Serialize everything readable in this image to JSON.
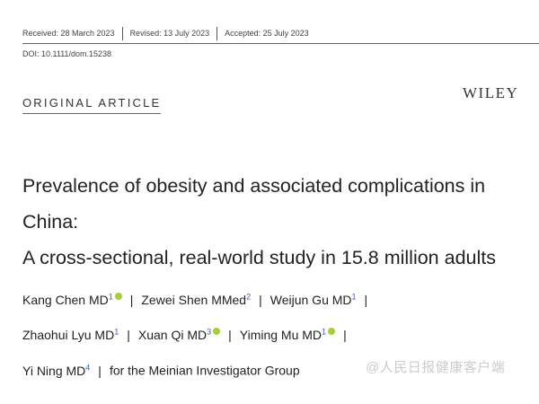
{
  "header": {
    "received": "Received: 28 March 2023",
    "revised": "Revised: 13 July 2023",
    "accepted": "Accepted: 25 July 2023",
    "doi": "DOI: 10.1111/dom.15238"
  },
  "article_type": "ORIGINAL ARTICLE",
  "publisher": "WILEY",
  "title": {
    "line1": "Prevalence of obesity and associated complications in China:",
    "line2": "A cross-sectional, real-world study in 15.8 million adults"
  },
  "authors": [
    {
      "name": "Kang Chen MD",
      "sup": "1",
      "orcid": true
    },
    {
      "name": "Zewei Shen MMed",
      "sup": "2",
      "orcid": false
    },
    {
      "name": "Weijun Gu MD",
      "sup": "1",
      "orcid": false
    },
    {
      "name": "Zhaohui Lyu MD",
      "sup": "1",
      "orcid": false
    },
    {
      "name": "Xuan Qi MD",
      "sup": "3",
      "orcid": true
    },
    {
      "name": "Yiming Mu MD",
      "sup": "1",
      "orcid": true
    },
    {
      "name": "Yi Ning MD",
      "sup": "4",
      "orcid": false
    }
  ],
  "group": "for the Meinian Investigator Group",
  "separator": "|",
  "watermark": "@人民日报健康客户端"
}
